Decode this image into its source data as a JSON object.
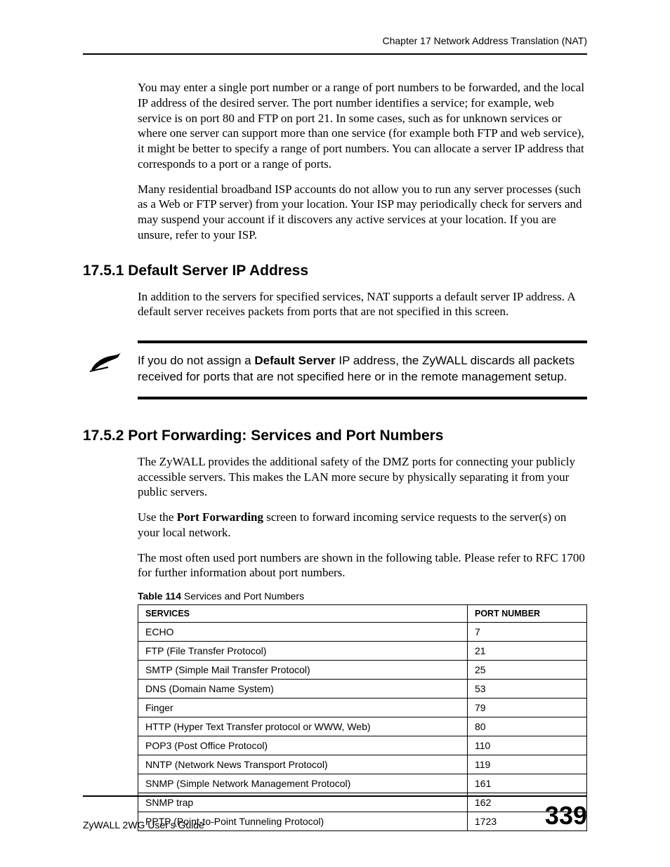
{
  "header": {
    "chapter": "Chapter 17 Network Address Translation (NAT)"
  },
  "intro": {
    "p1": "You may enter a single port number or a range of port numbers to be forwarded, and the local IP address of the desired server. The port number identifies a service; for example, web service is on port 80 and FTP on port 21. In some cases, such as for unknown services or where one server can support more than one service (for example both FTP and web service), it might be better to specify a range of port numbers. You can allocate a server IP address that corresponds to a port or a range of ports.",
    "p2": "Many residential broadband ISP accounts do not allow you to run any server processes (such as a Web or FTP server) from your location. Your ISP may periodically check for servers and may suspend your account if it discovers any active services at your location. If you are unsure, refer to your ISP."
  },
  "section1": {
    "heading": "17.5.1  Default Server IP Address",
    "p1": "In addition to the servers for specified services, NAT supports a default server IP address. A default server receives packets from ports that are not specified in this screen."
  },
  "note": {
    "pre": "If you do not assign a ",
    "bold": "Default Server",
    "post": " IP address, the ZyWALL discards all packets received for ports that are not specified here or in the remote management setup."
  },
  "section2": {
    "heading": "17.5.2  Port Forwarding: Services and Port Numbers",
    "p1": "The ZyWALL provides the additional safety of the DMZ ports for connecting your publicly accessible servers. This makes the LAN more secure by physically separating it from your public servers.",
    "p2_pre": "Use the ",
    "p2_bold": "Port Forwarding",
    "p2_post": " screen to forward incoming service requests to the server(s) on your local network.",
    "p3": "The most often used port numbers are shown in the following table. Please refer to RFC 1700 for further information about port numbers."
  },
  "table": {
    "caption_label": "Table 114",
    "caption_text": "   Services and Port Numbers",
    "columns": [
      "SERVICES",
      "PORT NUMBER"
    ],
    "rows": [
      [
        "ECHO",
        "7"
      ],
      [
        "FTP (File Transfer Protocol)",
        "21"
      ],
      [
        "SMTP (Simple Mail Transfer Protocol)",
        "25"
      ],
      [
        "DNS (Domain Name System)",
        "53"
      ],
      [
        "Finger",
        "79"
      ],
      [
        "HTTP (Hyper Text Transfer protocol or WWW, Web)",
        "80"
      ],
      [
        "POP3 (Post Office Protocol)",
        "110"
      ],
      [
        "NNTP (Network News Transport Protocol)",
        "119"
      ],
      [
        "SNMP (Simple Network Management Protocol)",
        "161"
      ],
      [
        "SNMP trap",
        "162"
      ],
      [
        "PPTP (Point-to-Point Tunneling Protocol)",
        "1723"
      ]
    ]
  },
  "footer": {
    "guide": "ZyWALL 2WG User's Guide",
    "page": "339"
  }
}
